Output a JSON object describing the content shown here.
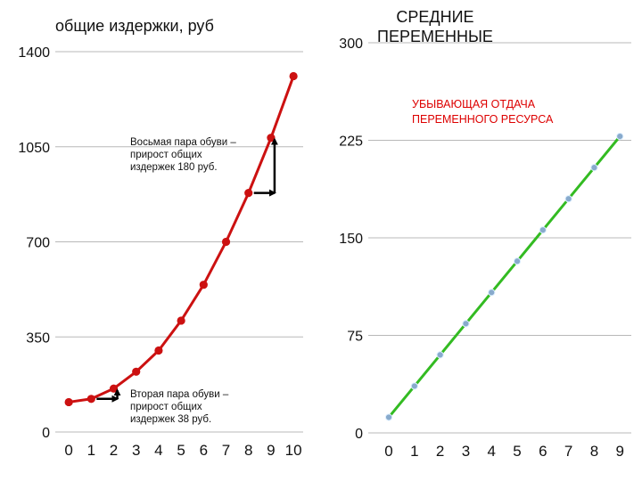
{
  "chart_data": [
    {
      "type": "line",
      "title": "общие издержки, руб",
      "x": [
        0,
        1,
        2,
        3,
        4,
        5,
        6,
        7,
        8,
        9,
        10
      ],
      "series": [
        {
          "values": [
            110,
            122,
            160,
            222,
            300,
            410,
            542,
            700,
            880,
            1083,
            1310
          ],
          "color": "#cc1111"
        }
      ],
      "ylim": [
        0,
        1400
      ],
      "yticks": [
        0,
        350,
        700,
        1050,
        1400
      ],
      "xticks": [
        0,
        1,
        2,
        3,
        4,
        5,
        6,
        7,
        8,
        9,
        10
      ],
      "grid": true,
      "annotations": [
        {
          "text": [
            "Восьмая пара обуви –",
            "прирост общих",
            "издержек 180 руб."
          ]
        },
        {
          "text": [
            "Вторая пара обуви –",
            "прирост общих",
            "издержек 38 руб."
          ]
        }
      ]
    },
    {
      "type": "line",
      "title": [
        "СРЕДНИЕ",
        "ПЕРЕМЕННЫЕ"
      ],
      "x": [
        0,
        1,
        2,
        3,
        4,
        5,
        6,
        7,
        8,
        9
      ],
      "series": [
        {
          "values": [
            12,
            36,
            60,
            84,
            108,
            132,
            156,
            180,
            204,
            228
          ],
          "color": "#33bb22",
          "marker_color": "#88aacc"
        }
      ],
      "ylim": [
        0,
        300
      ],
      "yticks": [
        0,
        75,
        150,
        225,
        300
      ],
      "xticks": [
        0,
        1,
        2,
        3,
        4,
        5,
        6,
        7,
        8,
        9
      ],
      "grid": true,
      "annotations": [
        {
          "text": [
            "УБЫВАЮЩАЯ ОТДАЧА",
            "ПЕРЕМЕННОГО РЕСУРСА"
          ],
          "color": "#dd0000"
        }
      ]
    }
  ]
}
